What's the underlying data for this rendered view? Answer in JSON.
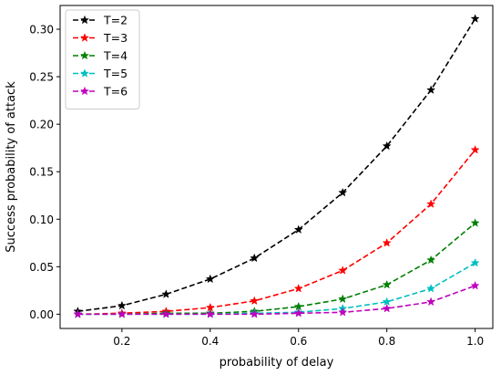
{
  "chart_data": {
    "type": "line",
    "title": "",
    "xlabel": "probability of delay",
    "ylabel": "Success probability of attack",
    "xlim": [
      0.06,
      1.04
    ],
    "ylim": [
      -0.015,
      0.325
    ],
    "xticks": [
      0.2,
      0.4,
      0.6,
      0.8,
      1.0
    ],
    "xtick_labels": [
      "0.2",
      "0.4",
      "0.6",
      "0.8",
      "1.0"
    ],
    "yticks": [
      0.0,
      0.05,
      0.1,
      0.15,
      0.2,
      0.25,
      0.3
    ],
    "ytick_labels": [
      "0.00",
      "0.05",
      "0.10",
      "0.15",
      "0.20",
      "0.25",
      "0.30"
    ],
    "grid": false,
    "legend_position": "top-left",
    "line_style": "dashed",
    "marker": "star",
    "x": [
      0.1,
      0.2,
      0.3,
      0.4,
      0.5,
      0.6,
      0.7,
      0.8,
      0.9,
      1.0
    ],
    "series": [
      {
        "name": "T=2",
        "color": "#000000",
        "values": [
          0.003,
          0.009,
          0.021,
          0.037,
          0.059,
          0.089,
          0.128,
          0.177,
          0.236,
          0.311
        ]
      },
      {
        "name": "T=3",
        "color": "#ff0000",
        "values": [
          0.0,
          0.001,
          0.003,
          0.007,
          0.014,
          0.027,
          0.046,
          0.075,
          0.116,
          0.173
        ]
      },
      {
        "name": "T=4",
        "color": "#008000",
        "values": [
          0.0,
          0.0,
          0.001,
          0.001,
          0.003,
          0.008,
          0.016,
          0.031,
          0.057,
          0.096
        ]
      },
      {
        "name": "T=5",
        "color": "#00bfbf",
        "values": [
          0.0,
          0.0,
          0.0,
          0.0,
          0.001,
          0.002,
          0.006,
          0.013,
          0.027,
          0.054
        ]
      },
      {
        "name": "T=6",
        "color": "#bf00bf",
        "values": [
          0.0,
          0.0,
          0.0,
          0.0,
          0.0,
          0.001,
          0.002,
          0.006,
          0.013,
          0.03
        ]
      }
    ]
  }
}
